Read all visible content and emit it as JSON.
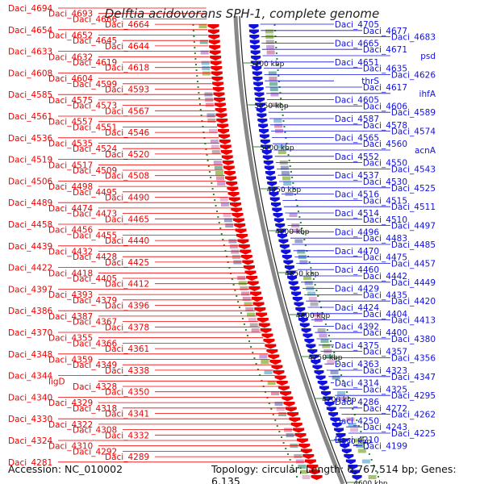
{
  "title": "Delftia acidovorans SPH-1, complete genome",
  "footer": {
    "accession": "Accession: NC_010002",
    "topology": "Topology: circular; Length: 6,767,514 bp; Genes: 6,135"
  },
  "colors": {
    "forward": "#ee0000",
    "reverse": "#1111dd",
    "backbone": "#888888",
    "tick": "#2a8a2a"
  },
  "kbp_labels": [
    "5100 kbp",
    "5050 kbp",
    "5000 kbp",
    "4950 kbp",
    "4900 kbp",
    "4850 kbp",
    "4800 kbp",
    "4750 kbp",
    "4700 kbp",
    "4650 kbp",
    "4600 kbp"
  ],
  "left_labels": [
    "Daci_4694",
    "Daci_4693",
    "Daci_4666",
    "Daci_4664",
    "Daci_4654",
    "Daci_4652",
    "Daci_4645",
    "Daci_4644",
    "Daci_4633",
    "Daci_4632",
    "Daci_4619",
    "Daci_4618",
    "Daci_4608",
    "Daci_4604",
    "Daci_4599",
    "Daci_4593",
    "Daci_4585",
    "Daci_4575",
    "Daci_4573",
    "Daci_4567",
    "Daci_4561",
    "Daci_4557",
    "Daci_4551",
    "Daci_4546",
    "Daci_4536",
    "Daci_4535",
    "Daci_4524",
    "Daci_4520",
    "Daci_4519",
    "Daci_4517",
    "Daci_4509",
    "Daci_4508",
    "Daci_4506",
    "Daci_4498",
    "Daci_4495",
    "Daci_4490",
    "Daci_4489",
    "Daci_4474",
    "Daci_4473",
    "Daci_4465",
    "Daci_4458",
    "Daci_4456",
    "Daci_4455",
    "Daci_4440",
    "Daci_4439",
    "Daci_4432",
    "Daci_4428",
    "Daci_4425",
    "Daci_4422",
    "Daci_4418",
    "Daci_4405",
    "Daci_4412",
    "Daci_4397",
    "Daci_4393",
    "Daci_4379",
    "Daci_4396",
    "Daci_4386",
    "Daci_4387",
    "Daci_4367",
    "Daci_4378",
    "Daci_4370",
    "Daci_4355",
    "Daci_4366",
    "Daci_4361",
    "Daci_4348",
    "Daci_4359",
    "Daci_4349",
    "Daci_4338",
    "Daci_4344",
    "ligD",
    "Daci_4328",
    "Daci_4350",
    "Daci_4340",
    "Daci_4329",
    "Daci_4318",
    "Daci_4341",
    "Daci_4330",
    "Daci_4322",
    "Daci_4308",
    "Daci_4332",
    "Daci_4324",
    "Daci_4310",
    "Daci_4292",
    "Daci_4289",
    "Daci_4281"
  ],
  "right_labels": [
    "Daci_4705",
    "Daci_4677",
    "Daci_4683",
    "Daci_4665",
    "Daci_4671",
    "psd",
    "Daci_4651",
    "Daci_4635",
    "Daci_4626",
    "thrS",
    "Daci_4617",
    "ihfA",
    "Daci_4605",
    "Daci_4606",
    "Daci_4589",
    "Daci_4587",
    "Daci_4578",
    "Daci_4574",
    "Daci_4565",
    "Daci_4560",
    "acnA",
    "Daci_4552",
    "Daci_4550",
    "Daci_4543",
    "Daci_4537",
    "Daci_4530",
    "Daci_4525",
    "Daci_4516",
    "Daci_4515",
    "Daci_4511",
    "Daci_4514",
    "Daci_4510",
    "Daci_4497",
    "Daci_4496",
    "Daci_4483",
    "Daci_4485",
    "Daci_4470",
    "Daci_4475",
    "Daci_4457",
    "Daci_4460",
    "Daci_4442",
    "Daci_4449",
    "Daci_4429",
    "Daci_4435",
    "Daci_4420",
    "Daci_4424",
    "Daci_4404",
    "Daci_4413",
    "Daci_4392",
    "Daci_4400",
    "Daci_4380",
    "Daci_4375",
    "Daci_4357",
    "Daci_4356",
    "Daci_4363",
    "Daci_4323",
    "Daci_4347",
    "Daci_4314",
    "Daci_4325",
    "Daci_4295",
    "Daci_4286",
    "Daci_4272",
    "Daci_4262",
    "Daci_4250",
    "Daci_4243",
    "Daci_4225",
    "Daci_4210",
    "Daci_4199"
  ]
}
